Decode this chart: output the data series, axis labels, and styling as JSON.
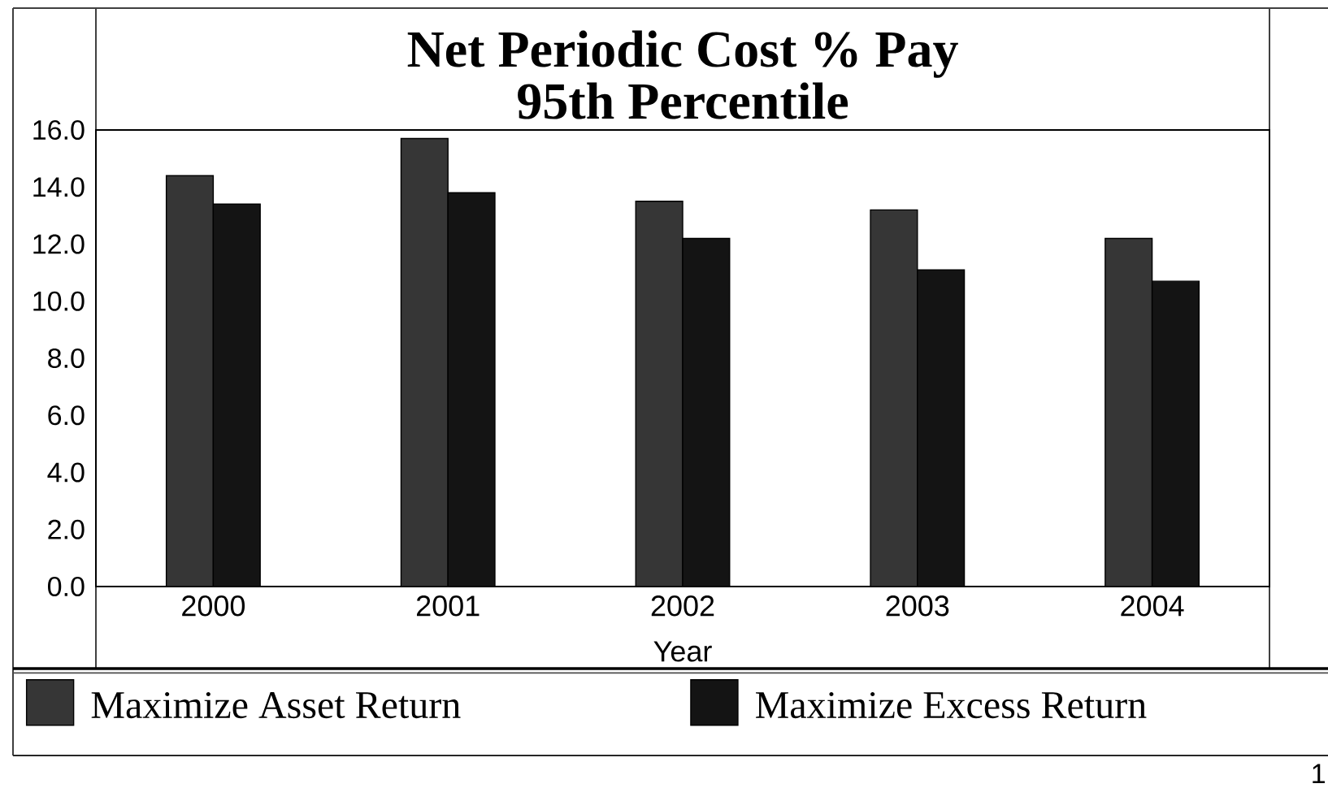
{
  "chart_data": {
    "type": "bar",
    "title": "Net Periodic Cost % Pay",
    "subtitle": "95th Percentile",
    "xlabel": "Year",
    "categories": [
      "2000",
      "2001",
      "2002",
      "2003",
      "2004"
    ],
    "series": [
      {
        "name": "Maximize Asset Return",
        "color": "#363636",
        "values": [
          14.4,
          15.7,
          13.5,
          13.2,
          12.2
        ]
      },
      {
        "name": "Maximize Excess Return",
        "color": "#141414",
        "values": [
          13.4,
          13.8,
          12.2,
          11.1,
          10.7
        ]
      }
    ],
    "ylim": [
      0,
      16
    ],
    "yticks": [
      {
        "value": 0,
        "label": "0.0"
      },
      {
        "value": 2,
        "label": "2.0"
      },
      {
        "value": 4,
        "label": "4.0"
      },
      {
        "value": 6,
        "label": "6.0"
      },
      {
        "value": 8,
        "label": "8.0"
      },
      {
        "value": 10,
        "label": "10.0"
      },
      {
        "value": 12,
        "label": "12.0"
      },
      {
        "value": 14,
        "label": "14.0"
      },
      {
        "value": 16,
        "label": "16.0"
      }
    ],
    "legend": "bottom",
    "annotations": [
      "1"
    ]
  }
}
